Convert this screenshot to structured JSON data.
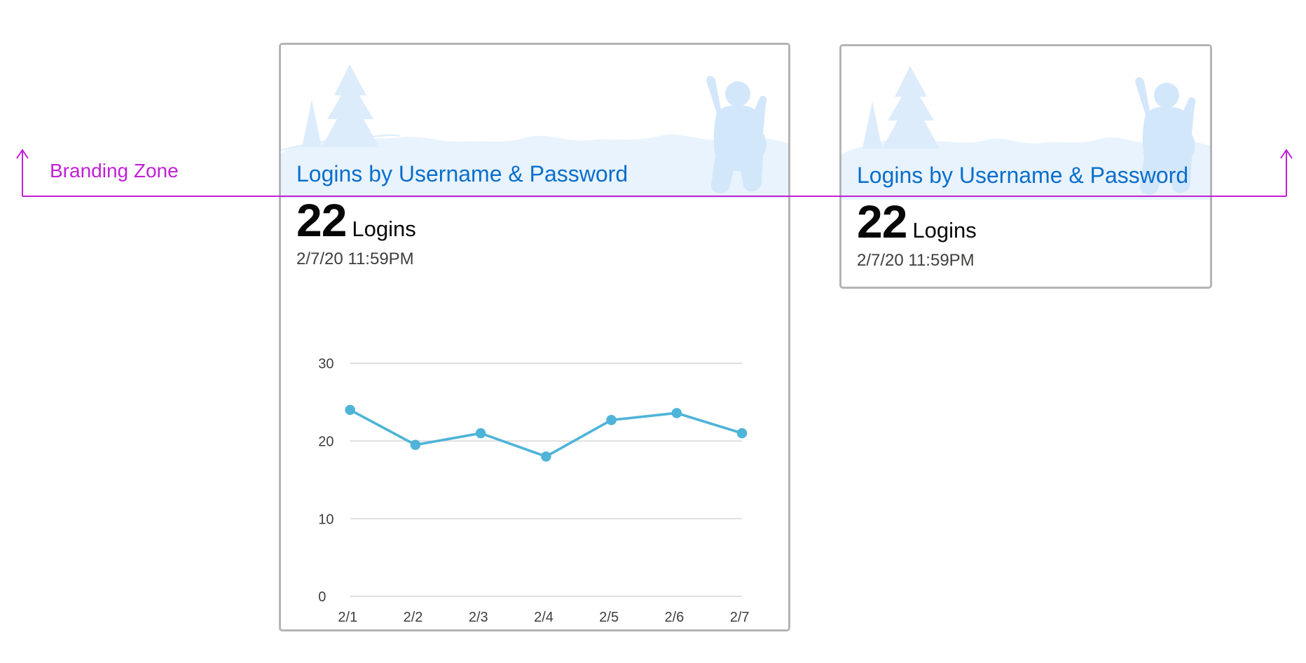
{
  "annotation": {
    "branding_zone_label": "Branding Zone",
    "color": "#c020d6"
  },
  "card_large": {
    "title": "Logins by Username & Password",
    "metric_value": "22",
    "metric_unit": "Logins",
    "timestamp": "2/7/20 11:59PM"
  },
  "card_small": {
    "title": "Logins by Username & Password",
    "metric_value": "22",
    "metric_unit": "Logins",
    "timestamp": "2/7/20 11:59PM"
  },
  "colors": {
    "title": "#0a6ecb",
    "line": "#4eb4d8",
    "banner": "#e8f3fd"
  },
  "chart_data": {
    "type": "line",
    "categories": [
      "2/1",
      "2/2",
      "2/3",
      "2/4",
      "2/5",
      "2/6",
      "2/7"
    ],
    "series": [
      {
        "values": [
          24,
          19.5,
          21,
          18,
          22.7,
          23.6,
          21
        ]
      }
    ],
    "yticks": [
      0,
      10,
      20,
      30
    ],
    "ylim": [
      0,
      30
    ],
    "grid": true
  }
}
